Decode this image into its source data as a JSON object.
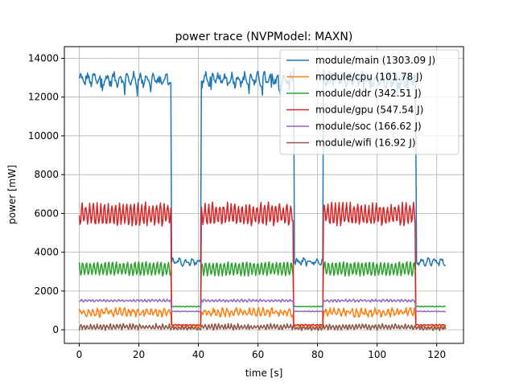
{
  "chart_data": {
    "type": "line",
    "title": "power trace (NVPModel: MAXN)",
    "xlabel": "time [s]",
    "ylabel": "power [mW]",
    "xlim": [
      -5,
      129
    ],
    "ylim": [
      -700,
      14600
    ],
    "x_ticks": [
      0,
      20,
      40,
      60,
      80,
      100,
      120
    ],
    "y_ticks": [
      0,
      2000,
      4000,
      6000,
      8000,
      10000,
      12000,
      14000
    ],
    "grid": true,
    "legend_position": "top-right",
    "active_windows": [
      [
        0,
        31
      ],
      [
        41,
        72
      ],
      [
        82,
        113
      ]
    ],
    "idle_windows": [
      [
        31,
        41
      ],
      [
        72,
        82
      ],
      [
        113,
        123
      ]
    ],
    "end_time": 123,
    "series": [
      {
        "name": "module/main (1303.09 J)",
        "color": "#1f77b4",
        "active": 12900,
        "active_amp": 250,
        "active_noise": 200,
        "idle": 3500,
        "idle_amp": 120,
        "idle_noise": 120,
        "period": 2.2
      },
      {
        "name": "module/cpu (101.78 J)",
        "color": "#ff7f0e",
        "active": 900,
        "active_amp": 150,
        "active_noise": 120,
        "idle": 150,
        "idle_amp": 60,
        "idle_noise": 60,
        "period": 1.5
      },
      {
        "name": "module/ddr (342.51 J)",
        "color": "#2ca02c",
        "active": 3150,
        "active_amp": 330,
        "active_noise": 60,
        "idle": 1200,
        "idle_amp": 15,
        "idle_noise": 10,
        "period": 1.25
      },
      {
        "name": "module/gpu (547.54 J)",
        "color": "#d62728",
        "active": 5950,
        "active_amp": 500,
        "active_noise": 150,
        "idle": 250,
        "idle_amp": 20,
        "idle_noise": 15,
        "period": 1.25
      },
      {
        "name": "module/soc (166.62 J)",
        "color": "#9467bd",
        "active": 1500,
        "active_amp": 50,
        "active_noise": 30,
        "idle": 950,
        "idle_amp": 15,
        "idle_noise": 10,
        "period": 1.25
      },
      {
        "name": "module/wifi (16.92 J)",
        "color": "#8c564b",
        "active": 150,
        "active_amp": 120,
        "active_noise": 60,
        "idle": 80,
        "idle_amp": 80,
        "idle_noise": 50,
        "period": 1.1
      }
    ],
    "peaks": [
      {
        "series": 0,
        "x": 72,
        "y": 13500
      },
      {
        "series": 0,
        "x": 82,
        "y": 13400
      },
      {
        "series": 0,
        "x": 113,
        "y": 9600
      }
    ]
  }
}
